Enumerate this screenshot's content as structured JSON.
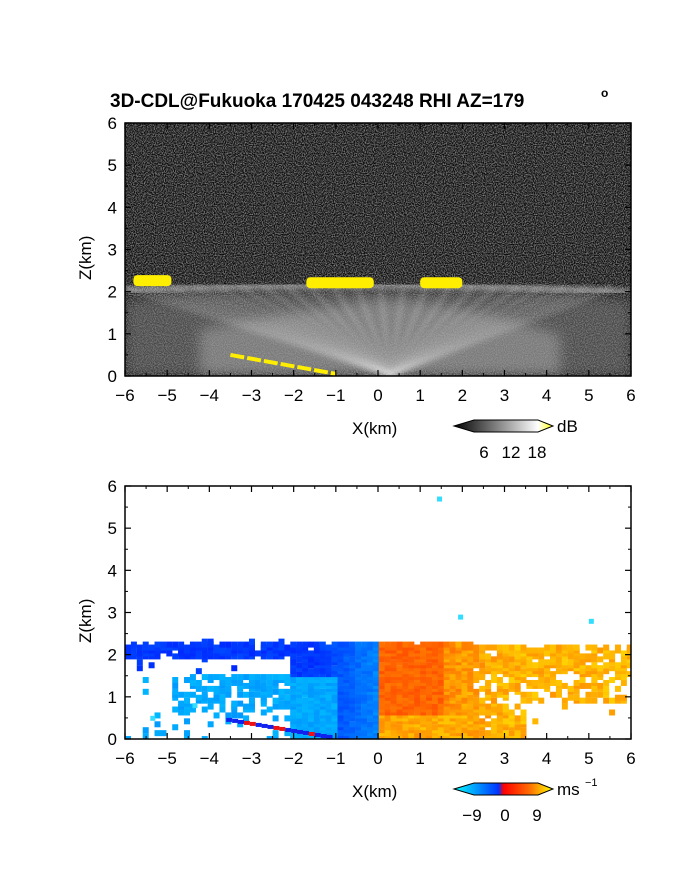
{
  "title_main": "3D-CDL@Fukuoka 170425 043248 RHI AZ=179",
  "title_deg": "o",
  "chart_data": [
    {
      "type": "heatmap",
      "panel": "backscatter",
      "xlabel": "X(km)",
      "ylabel": "Z(km)",
      "xlim": [
        -6,
        6
      ],
      "ylim": [
        0,
        6
      ],
      "xticks": [
        "−6",
        "−5",
        "−4",
        "−3",
        "−2",
        "−1",
        "0",
        "1",
        "2",
        "3",
        "4",
        "5",
        "6"
      ],
      "yticks": [
        "0",
        "1",
        "2",
        "3",
        "4",
        "5",
        "6"
      ],
      "colorbar": {
        "unit": "dB",
        "ticks": [
          "6",
          "12",
          "18"
        ],
        "range": [
          0,
          21
        ],
        "colors": [
          "#000000",
          "#ffffff",
          "#ffff00"
        ]
      },
      "features": {
        "cloud_base_height_km": 2.1,
        "saturated_segments": [
          {
            "x": [
              -5.8,
              -4.9
            ],
            "z": 2.25
          },
          {
            "x": [
              -1.7,
              -0.1
            ],
            "z": 2.2
          },
          {
            "x": [
              1.0,
              2.0
            ],
            "z": 2.2
          },
          {
            "x": [
              -3.5,
              -1.0
            ],
            "z": 0.3
          }
        ]
      }
    },
    {
      "type": "heatmap",
      "panel": "doppler velocity",
      "xlabel": "X(km)",
      "ylabel": "Z(km)",
      "xlim": [
        -6,
        6
      ],
      "ylim": [
        0,
        6
      ],
      "xticks": [
        "−6",
        "−5",
        "−4",
        "−3",
        "−2",
        "−1",
        "0",
        "1",
        "2",
        "3",
        "4",
        "5",
        "6"
      ],
      "yticks": [
        "0",
        "1",
        "2",
        "3",
        "4",
        "5",
        "6"
      ],
      "colorbar": {
        "unit": "ms",
        "unit_exp": "−1",
        "ticks": [
          "−9",
          "0",
          "9"
        ],
        "range": [
          -10,
          10
        ],
        "colors": [
          "#00ffff",
          "#0033ff",
          "#ff0000",
          "#ffff00"
        ]
      },
      "features": {
        "negative_region": {
          "x": [
            -6,
            0
          ],
          "z": [
            0,
            2.3
          ],
          "velocity": -8
        },
        "positive_region": {
          "x": [
            0,
            6
          ],
          "z": [
            0,
            2.3
          ],
          "velocity": 7
        }
      }
    }
  ]
}
